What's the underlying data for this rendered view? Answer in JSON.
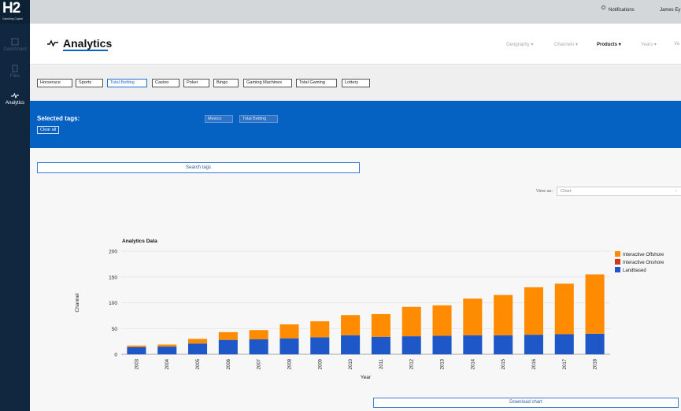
{
  "sidebar": {
    "logo_mark": "H2",
    "logo_tag": "Gambling Capital",
    "items": [
      {
        "label": "Dashboard",
        "icon": "dashboard-icon"
      },
      {
        "label": "Files",
        "icon": "files-icon"
      },
      {
        "label": "Analytics",
        "icon": "pulse-icon",
        "active": true
      }
    ]
  },
  "topbar": {
    "notifications": "Notifications",
    "user": "James Ey"
  },
  "header": {
    "title": "Analytics",
    "nav": [
      {
        "label": "Geography"
      },
      {
        "label": "Channels"
      },
      {
        "label": "Products",
        "active": true
      },
      {
        "label": "Years"
      },
      {
        "label": "Va"
      }
    ]
  },
  "chips": [
    "Horserace",
    "Sports",
    "Total Betting",
    "Casino",
    "Poker",
    "Bingo",
    "Gaming Machines",
    "Total Gaming",
    "Lottery"
  ],
  "selected": {
    "label": "Selected tags:",
    "clear": "Clear all",
    "tags": [
      "Mexico",
      "Total Betting"
    ]
  },
  "search": {
    "label": "Search tags"
  },
  "view_as": {
    "label": "View as:",
    "value": "Chart"
  },
  "download": {
    "label": "Download chart"
  },
  "colors": {
    "accent": "#0561c2",
    "offshore": "#ff8c00",
    "onshore": "#d0361a",
    "landbased": "#1e58c8"
  },
  "chart_data": {
    "type": "bar",
    "stacked": true,
    "title": "Analytics Data",
    "xlabel": "Year",
    "ylabel": "Channel",
    "ylim": [
      0,
      200
    ],
    "yticks": [
      0,
      50,
      100,
      150,
      200
    ],
    "categories": [
      "2003",
      "2004",
      "2005",
      "2006",
      "2007",
      "2008",
      "2009",
      "2010",
      "2011",
      "2012",
      "2013",
      "2014",
      "2015",
      "2016",
      "2017",
      "2018"
    ],
    "legend_position": "right",
    "series": [
      {
        "name": "Landbased",
        "color": "#1e58c8",
        "values": [
          14,
          15,
          21,
          28,
          29,
          31,
          33,
          37,
          34,
          35,
          36,
          37,
          37,
          38,
          39,
          40
        ]
      },
      {
        "name": "Interactive Onshore",
        "color": "#d0361a",
        "values": [
          0,
          0,
          0,
          0,
          0,
          0,
          0,
          0,
          0,
          0,
          0,
          0,
          0,
          0,
          0,
          0
        ]
      },
      {
        "name": "Interactive Offshore",
        "color": "#ff8c00",
        "values": [
          3,
          4,
          9,
          15,
          18,
          27,
          31,
          39,
          44,
          57,
          59,
          71,
          78,
          92,
          98,
          115
        ]
      }
    ]
  }
}
